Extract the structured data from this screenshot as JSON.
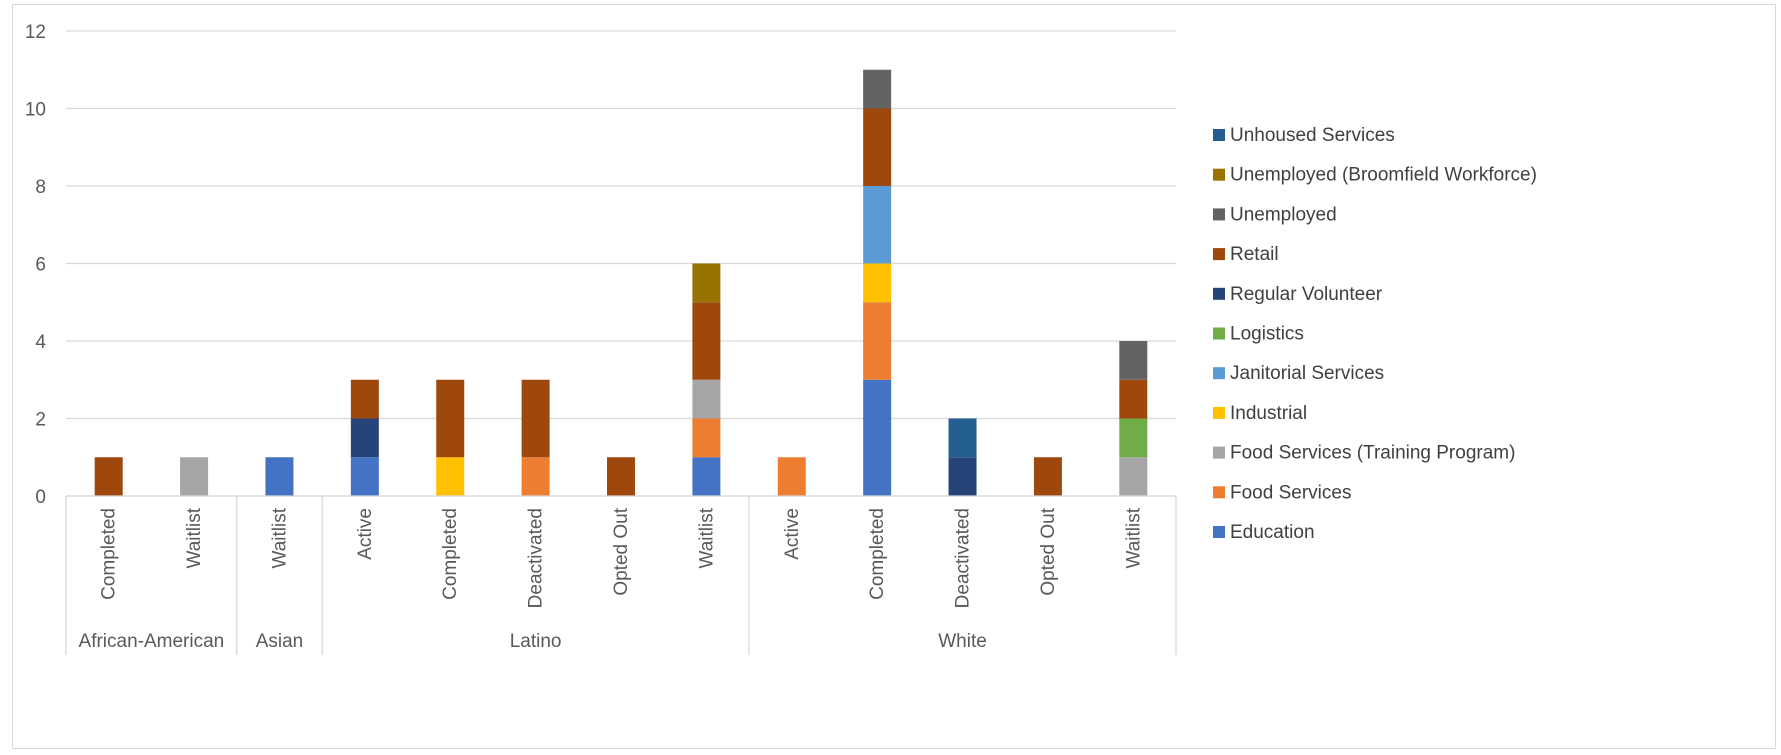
{
  "chart_data": {
    "type": "bar",
    "stacked": true,
    "title": "",
    "xlabel": "",
    "ylabel": "",
    "ylim": [
      0,
      12
    ],
    "yticks": [
      0,
      2,
      4,
      6,
      8,
      10,
      12
    ],
    "grid": true,
    "legend_position": "right",
    "groups": [
      {
        "label": "African-American",
        "categories": [
          "Completed",
          "Waitlist"
        ]
      },
      {
        "label": "Asian",
        "categories": [
          "Waitlist"
        ]
      },
      {
        "label": "Latino",
        "categories": [
          "Active",
          "Completed",
          "Deactivated",
          "Opted Out",
          "Waitlist"
        ]
      },
      {
        "label": "White",
        "categories": [
          "Active",
          "Completed",
          "Deactivated",
          "Opted Out",
          "Waitlist"
        ]
      }
    ],
    "categories": [
      "Completed",
      "Waitlist",
      "Waitlist",
      "Active",
      "Completed",
      "Deactivated",
      "Opted Out",
      "Waitlist",
      "Active",
      "Completed",
      "Deactivated",
      "Opted Out",
      "Waitlist"
    ],
    "series": [
      {
        "name": "Education",
        "color": "#4472c4",
        "values": [
          0,
          0,
          1,
          1,
          0,
          0,
          0,
          1,
          0,
          3,
          0,
          0,
          0
        ]
      },
      {
        "name": "Food Services",
        "color": "#ed7d31",
        "values": [
          0,
          0,
          0,
          0,
          0,
          1,
          0,
          1,
          1,
          2,
          0,
          0,
          0
        ]
      },
      {
        "name": "Food Services (Training Program)",
        "color": "#a5a5a5",
        "values": [
          0,
          1,
          0,
          0,
          0,
          0,
          0,
          1,
          0,
          0,
          0,
          0,
          1
        ]
      },
      {
        "name": "Industrial",
        "color": "#ffc000",
        "values": [
          0,
          0,
          0,
          0,
          1,
          0,
          0,
          0,
          0,
          1,
          0,
          0,
          0
        ]
      },
      {
        "name": "Janitorial Services",
        "color": "#5b9bd5",
        "values": [
          0,
          0,
          0,
          0,
          0,
          0,
          0,
          0,
          0,
          2,
          0,
          0,
          0
        ]
      },
      {
        "name": "Logistics",
        "color": "#70ad47",
        "values": [
          0,
          0,
          0,
          0,
          0,
          0,
          0,
          0,
          0,
          0,
          0,
          0,
          1
        ]
      },
      {
        "name": "Regular Volunteer",
        "color": "#264478",
        "values": [
          0,
          0,
          0,
          1,
          0,
          0,
          0,
          0,
          0,
          0,
          1,
          0,
          0
        ]
      },
      {
        "name": "Retail",
        "color": "#9e480e",
        "values": [
          1,
          0,
          0,
          1,
          2,
          2,
          1,
          2,
          0,
          2,
          0,
          1,
          1
        ]
      },
      {
        "name": "Unemployed",
        "color": "#636363",
        "values": [
          0,
          0,
          0,
          0,
          0,
          0,
          0,
          0,
          0,
          1,
          0,
          0,
          1
        ]
      },
      {
        "name": "Unemployed (Broomfield Workforce)",
        "color": "#997300",
        "values": [
          0,
          0,
          0,
          0,
          0,
          0,
          0,
          1,
          0,
          0,
          0,
          0,
          0
        ]
      },
      {
        "name": "Unhoused Services",
        "color": "#255e91",
        "values": [
          0,
          0,
          0,
          0,
          0,
          0,
          0,
          0,
          0,
          0,
          1,
          0,
          0
        ]
      }
    ]
  }
}
